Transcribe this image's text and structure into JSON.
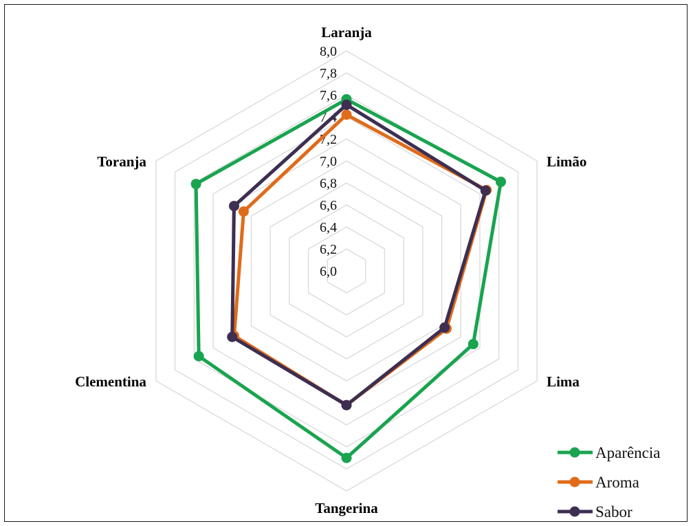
{
  "chart_data": {
    "type": "radar",
    "categories": [
      "Laranja",
      "Limão",
      "Lima",
      "Tangerina",
      "Clementina",
      "Toranja"
    ],
    "rlim": [
      6.0,
      8.0
    ],
    "ticks": [
      "6,0",
      "6,2",
      "6,4",
      "6,6",
      "6,8",
      "7,0",
      "7,2",
      "7,4",
      "7,6",
      "7,8",
      "8,0"
    ],
    "grid": true,
    "legend_position": "bottom-right",
    "series": [
      {
        "name": "Aparência",
        "color": "#19a44f",
        "values": [
          7.56,
          7.62,
          7.33,
          7.7,
          7.55,
          7.58
        ]
      },
      {
        "name": "Aroma",
        "color": "#e06b1a",
        "values": [
          7.42,
          7.47,
          7.05,
          7.22,
          7.18,
          7.08
        ]
      },
      {
        "name": "Sabor",
        "color": "#3d2e52",
        "values": [
          7.51,
          7.46,
          7.03,
          7.22,
          7.2,
          7.18
        ]
      }
    ]
  }
}
